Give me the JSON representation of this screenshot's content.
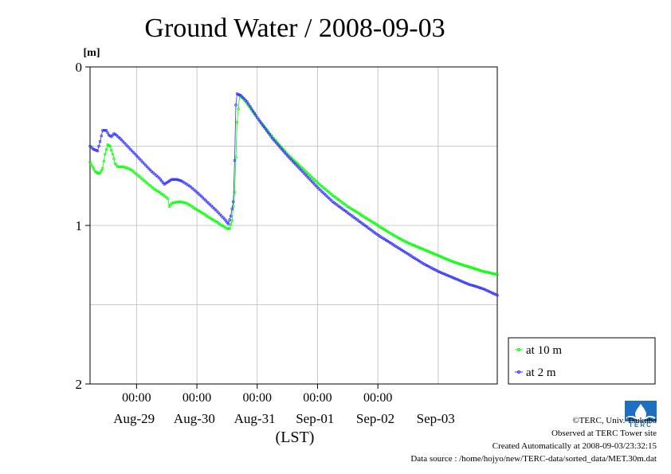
{
  "chart_data": {
    "type": "line",
    "title": "Ground Water / 2008-09-03",
    "ylabel": "[m]",
    "xlabel": "(LST)",
    "ylim": [
      0,
      2
    ],
    "y_inverted": true,
    "y_ticks": [
      "0",
      "1",
      "2"
    ],
    "x_range": [
      "2008-08-28 05:30",
      "2008-09-03 23:30"
    ],
    "x_time_ticks": [
      "00:00",
      "00:00",
      "00:00",
      "00:00",
      "00:00"
    ],
    "x_date_labels": [
      "Aug-29",
      "Aug-30",
      "Aug-31",
      "Sep-01",
      "Sep-02",
      "Sep-03"
    ],
    "grid": true,
    "legend_position": "bottom-right, outside plot",
    "series": [
      {
        "name": "at 10 m",
        "color": "#00ff00",
        "points": [
          [
            "2008-08-28 05:30",
            0.6
          ],
          [
            "2008-08-28 06:30",
            0.63
          ],
          [
            "2008-08-28 07:30",
            0.66
          ],
          [
            "2008-08-28 08:30",
            0.67
          ],
          [
            "2008-08-28 09:30",
            0.67
          ],
          [
            "2008-08-28 10:30",
            0.64
          ],
          [
            "2008-08-28 11:30",
            0.55
          ],
          [
            "2008-08-28 12:30",
            0.49
          ],
          [
            "2008-08-28 13:30",
            0.5
          ],
          [
            "2008-08-28 14:30",
            0.55
          ],
          [
            "2008-08-28 15:30",
            0.61
          ],
          [
            "2008-08-28 16:30",
            0.63
          ],
          [
            "2008-08-28 19:00",
            0.63
          ],
          [
            "2008-08-28 22:00",
            0.65
          ],
          [
            "2008-08-29 01:00",
            0.69
          ],
          [
            "2008-08-29 04:00",
            0.73
          ],
          [
            "2008-08-29 07:00",
            0.77
          ],
          [
            "2008-08-29 10:00",
            0.8
          ],
          [
            "2008-08-29 12:30",
            0.83
          ],
          [
            "2008-08-29 13:00",
            0.88
          ],
          [
            "2008-08-29 14:00",
            0.86
          ],
          [
            "2008-08-29 17:00",
            0.85
          ],
          [
            "2008-08-29 20:00",
            0.86
          ],
          [
            "2008-08-29 23:00",
            0.89
          ],
          [
            "2008-08-30 04:00",
            0.94
          ],
          [
            "2008-08-30 09:00",
            0.99
          ],
          [
            "2008-08-30 12:00",
            1.02
          ],
          [
            "2008-08-30 13:00",
            1.02
          ],
          [
            "2008-08-30 14:00",
            0.97
          ],
          [
            "2008-08-30 15:00",
            0.79
          ],
          [
            "2008-08-30 16:00",
            0.35
          ],
          [
            "2008-08-30 17:00",
            0.18
          ],
          [
            "2008-08-30 18:30",
            0.2
          ],
          [
            "2008-08-31 00:00",
            0.32
          ],
          [
            "2008-08-31 06:00",
            0.44
          ],
          [
            "2008-08-31 12:00",
            0.55
          ],
          [
            "2008-08-31 18:00",
            0.64
          ],
          [
            "2008-09-01 00:00",
            0.73
          ],
          [
            "2008-09-01 06:00",
            0.81
          ],
          [
            "2008-09-01 12:00",
            0.88
          ],
          [
            "2008-09-01 18:00",
            0.94
          ],
          [
            "2008-09-02 00:00",
            1.0
          ],
          [
            "2008-09-02 06:00",
            1.06
          ],
          [
            "2008-09-02 12:00",
            1.11
          ],
          [
            "2008-09-02 18:00",
            1.15
          ],
          [
            "2008-09-03 00:00",
            1.19
          ],
          [
            "2008-09-03 06:00",
            1.23
          ],
          [
            "2008-09-03 12:00",
            1.26
          ],
          [
            "2008-09-03 18:00",
            1.29
          ],
          [
            "2008-09-03 23:30",
            1.31
          ]
        ]
      },
      {
        "name": "at 2 m",
        "color": "#3333ff",
        "points": [
          [
            "2008-08-28 05:30",
            0.5
          ],
          [
            "2008-08-28 07:00",
            0.52
          ],
          [
            "2008-08-28 08:30",
            0.53
          ],
          [
            "2008-08-28 09:30",
            0.47
          ],
          [
            "2008-08-28 10:30",
            0.4
          ],
          [
            "2008-08-28 12:00",
            0.4
          ],
          [
            "2008-08-28 13:00",
            0.43
          ],
          [
            "2008-08-28 14:00",
            0.44
          ],
          [
            "2008-08-28 15:00",
            0.42
          ],
          [
            "2008-08-28 16:00",
            0.43
          ],
          [
            "2008-08-28 18:00",
            0.46
          ],
          [
            "2008-08-28 21:00",
            0.51
          ],
          [
            "2008-08-29 00:00",
            0.56
          ],
          [
            "2008-08-29 03:00",
            0.61
          ],
          [
            "2008-08-29 06:00",
            0.66
          ],
          [
            "2008-08-29 09:00",
            0.7
          ],
          [
            "2008-08-29 11:00",
            0.74
          ],
          [
            "2008-08-29 12:00",
            0.73
          ],
          [
            "2008-08-29 14:00",
            0.71
          ],
          [
            "2008-08-29 16:00",
            0.71
          ],
          [
            "2008-08-29 18:00",
            0.72
          ],
          [
            "2008-08-29 21:00",
            0.75
          ],
          [
            "2008-08-30 00:00",
            0.79
          ],
          [
            "2008-08-30 04:00",
            0.85
          ],
          [
            "2008-08-30 08:00",
            0.91
          ],
          [
            "2008-08-30 11:00",
            0.96
          ],
          [
            "2008-08-30 12:30",
            0.99
          ],
          [
            "2008-08-30 13:30",
            0.94
          ],
          [
            "2008-08-30 14:30",
            0.85
          ],
          [
            "2008-08-30 15:00",
            0.59
          ],
          [
            "2008-08-30 15:30",
            0.24
          ],
          [
            "2008-08-30 16:00",
            0.17
          ],
          [
            "2008-08-30 17:30",
            0.18
          ],
          [
            "2008-08-30 20:00",
            0.22
          ],
          [
            "2008-08-31 00:00",
            0.32
          ],
          [
            "2008-08-31 06:00",
            0.45
          ],
          [
            "2008-08-31 12:00",
            0.56
          ],
          [
            "2008-08-31 18:00",
            0.66
          ],
          [
            "2008-09-01 00:00",
            0.76
          ],
          [
            "2008-09-01 06:00",
            0.85
          ],
          [
            "2008-09-01 12:00",
            0.92
          ],
          [
            "2008-09-01 18:00",
            0.99
          ],
          [
            "2008-09-02 00:00",
            1.06
          ],
          [
            "2008-09-02 06:00",
            1.12
          ],
          [
            "2008-09-02 12:00",
            1.18
          ],
          [
            "2008-09-02 18:00",
            1.24
          ],
          [
            "2008-09-03 00:00",
            1.29
          ],
          [
            "2008-09-03 06:00",
            1.33
          ],
          [
            "2008-09-03 12:00",
            1.37
          ],
          [
            "2008-09-03 18:00",
            1.4
          ],
          [
            "2008-09-03 23:30",
            1.44
          ]
        ]
      }
    ]
  },
  "footer": {
    "copyright": "©TERC, Univ. Tsukuba",
    "observed": "Observed at TERC Tower site",
    "created": "Created Automatically at 2008-09-03/23:32:15",
    "source": "Data source : /home/hojyo/new/TERC-data/sorted_data/MET.30m.dat"
  },
  "logo": {
    "text": "TERC",
    "color": "#1e6fc0"
  }
}
